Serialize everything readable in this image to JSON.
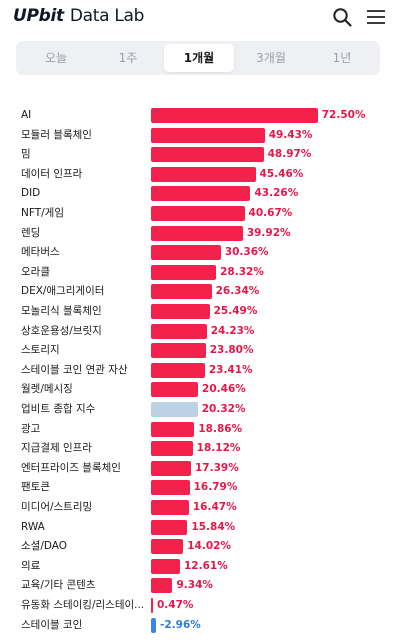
{
  "header": {
    "logo_bold": "UPbit",
    "logo_light": "Data Lab"
  },
  "tabs": [
    {
      "label": "오늘",
      "active": false
    },
    {
      "label": "1주",
      "active": false
    },
    {
      "label": "1개월",
      "active": true
    },
    {
      "label": "3개월",
      "active": false
    },
    {
      "label": "1년",
      "active": false
    }
  ],
  "colors": {
    "positive_bar": "#f5214d",
    "positive_text": "#e8174a",
    "benchmark_bar": "#bcd1e4",
    "negative_bar": "#3a86e8",
    "negative_text": "#2f7ae0"
  },
  "chart_data": {
    "type": "bar",
    "orientation": "horizontal",
    "unit": "%",
    "categories": [
      "AI",
      "모듈러 블록체인",
      "밈",
      "데이터 인프라",
      "DID",
      "NFT/게임",
      "렌딩",
      "메타버스",
      "오라클",
      "DEX/애그리게이터",
      "모놀리식 블록체인",
      "상호운용성/브릿지",
      "스토리지",
      "스테이블 코인 연관 자산",
      "월렛/메시징",
      "업비트 종합 지수",
      "광고",
      "지급결제 인프라",
      "엔터프라이즈 블록체인",
      "팬토큰",
      "미디어/스트리밍",
      "RWA",
      "소셜/DAO",
      "의료",
      "교육/기타 콘텐츠",
      "유동화 스테이킹/리스테이...",
      "스테이블 코인"
    ],
    "values": [
      72.5,
      49.43,
      48.97,
      45.46,
      43.26,
      40.67,
      39.92,
      30.36,
      28.32,
      26.34,
      25.49,
      24.23,
      23.8,
      23.41,
      20.46,
      20.32,
      18.86,
      18.12,
      17.39,
      16.79,
      16.47,
      15.84,
      14.02,
      12.61,
      9.34,
      0.47,
      -2.96
    ],
    "labels": [
      "72.50%",
      "49.43%",
      "48.97%",
      "45.46%",
      "43.26%",
      "40.67%",
      "39.92%",
      "30.36%",
      "28.32%",
      "26.34%",
      "25.49%",
      "24.23%",
      "23.80%",
      "23.41%",
      "20.46%",
      "20.32%",
      "18.86%",
      "18.12%",
      "17.39%",
      "16.79%",
      "16.47%",
      "15.84%",
      "14.02%",
      "12.61%",
      "9.34%",
      "0.47%",
      "-2.96%"
    ],
    "benchmark_category": "업비트 종합 지수"
  }
}
